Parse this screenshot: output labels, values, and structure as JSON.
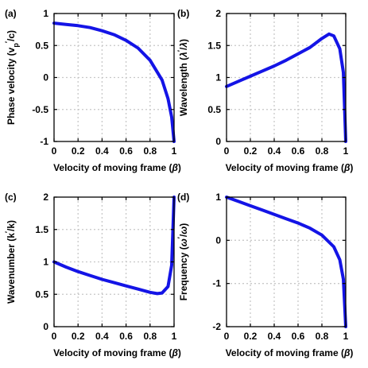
{
  "chart_data": [
    {
      "type": "line",
      "panel": "(a)",
      "ylabel": "Phase velocity (v_p'/c)",
      "xlabel": "Velocity of moving frame (β)",
      "xlim": [
        0,
        1
      ],
      "ylim": [
        -1,
        1
      ],
      "xticks": [
        "0",
        "0.2",
        "0.4",
        "0.6",
        "0.8",
        "1"
      ],
      "yticks": [
        "-1",
        "-0.5",
        "0",
        "0.5",
        "1"
      ],
      "grid": true,
      "series": [
        {
          "x": [
            0,
            0.1,
            0.2,
            0.3,
            0.4,
            0.5,
            0.6,
            0.7,
            0.8,
            0.9,
            0.95,
            0.98,
            1.0
          ],
          "values": [
            0.85,
            0.83,
            0.81,
            0.78,
            0.73,
            0.67,
            0.58,
            0.46,
            0.27,
            -0.04,
            -0.33,
            -0.62,
            -1.0
          ]
        }
      ]
    },
    {
      "type": "line",
      "panel": "(b)",
      "ylabel": "Wavelength (λ'/λ)",
      "xlabel": "Velocity of moving frame (β)",
      "xlim": [
        0,
        1
      ],
      "ylim": [
        0,
        2
      ],
      "xticks": [
        "0",
        "0.2",
        "0.4",
        "0.6",
        "0.8",
        "1"
      ],
      "yticks": [
        "0",
        "0.5",
        "1",
        "1.5",
        "2"
      ],
      "grid": true,
      "series": [
        {
          "x": [
            0,
            0.1,
            0.2,
            0.3,
            0.4,
            0.5,
            0.6,
            0.7,
            0.8,
            0.86,
            0.9,
            0.95,
            0.98,
            1.0
          ],
          "values": [
            0.86,
            0.94,
            1.02,
            1.1,
            1.18,
            1.27,
            1.37,
            1.47,
            1.61,
            1.68,
            1.65,
            1.45,
            1.08,
            0.0
          ]
        }
      ]
    },
    {
      "type": "line",
      "panel": "(c)",
      "ylabel": "Wavenumber (k'/k)",
      "xlabel": "Velocity of moving frame (β)",
      "xlim": [
        0,
        1
      ],
      "ylim": [
        0,
        2
      ],
      "xticks": [
        "0",
        "0.2",
        "0.4",
        "0.6",
        "0.8",
        "1"
      ],
      "yticks": [
        "0",
        "0.5",
        "1",
        "1.5",
        "2"
      ],
      "grid": true,
      "series": [
        {
          "x": [
            0,
            0.1,
            0.2,
            0.3,
            0.4,
            0.5,
            0.6,
            0.7,
            0.8,
            0.86,
            0.9,
            0.95,
            0.98,
            1.0
          ],
          "values": [
            1.0,
            0.92,
            0.85,
            0.79,
            0.73,
            0.68,
            0.63,
            0.58,
            0.53,
            0.51,
            0.52,
            0.62,
            0.95,
            2.0
          ]
        }
      ]
    },
    {
      "type": "line",
      "panel": "(d)",
      "ylabel": "Frequency (ω'/ω)",
      "xlabel": "Velocity of moving frame (β)",
      "xlim": [
        0,
        1
      ],
      "ylim": [
        -2,
        1
      ],
      "xticks": [
        "0",
        "0.2",
        "0.4",
        "0.6",
        "0.8",
        "1"
      ],
      "yticks": [
        "-2",
        "-1",
        "0",
        "1"
      ],
      "grid": true,
      "series": [
        {
          "x": [
            0,
            0.1,
            0.2,
            0.3,
            0.4,
            0.5,
            0.6,
            0.7,
            0.8,
            0.9,
            0.95,
            0.98,
            1.0
          ],
          "values": [
            1.0,
            0.9,
            0.8,
            0.7,
            0.6,
            0.5,
            0.4,
            0.28,
            0.12,
            -0.15,
            -0.45,
            -0.9,
            -2.0
          ]
        }
      ]
    }
  ]
}
